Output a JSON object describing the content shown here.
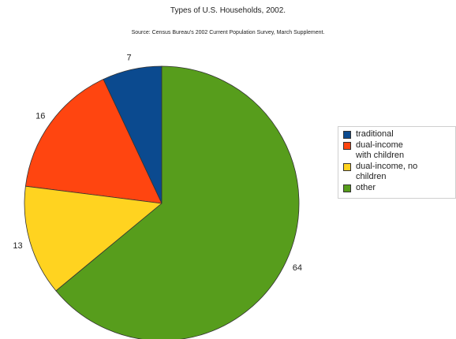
{
  "chart_data": {
    "type": "pie",
    "title": "Types of U.S. Households, 2002.",
    "subtitle": "Source: Census Bureau's 2002 Current Population Survey, March Supplement.",
    "slices": [
      {
        "label": "traditional",
        "value": 7,
        "color": "#0b4a8f"
      },
      {
        "label": "dual-income\nwith children",
        "value": 16,
        "color": "#ff4510"
      },
      {
        "label": "dual-income, no\nchildren",
        "value": 13,
        "color": "#ffd320"
      },
      {
        "label": "other",
        "value": 64,
        "color": "#579d1c"
      }
    ],
    "start_angle_deg": 0,
    "direction": "counterclockwise",
    "legend_position": "right"
  }
}
